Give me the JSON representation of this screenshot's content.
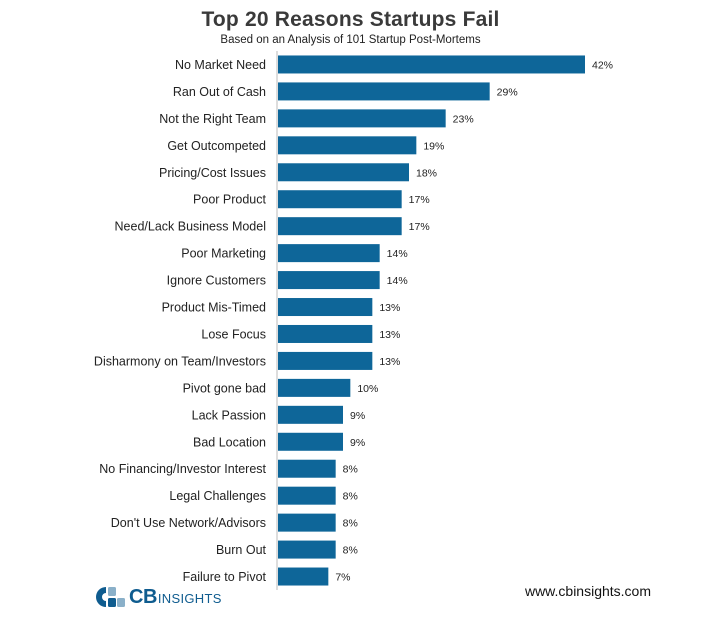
{
  "chart_data": {
    "type": "bar",
    "orientation": "horizontal",
    "title": "Top 20 Reasons Startups Fail",
    "subtitle": "Based on an Analysis of 101 Startup Post-Mortems",
    "categories": [
      "No Market Need",
      "Ran Out of Cash",
      "Not the Right Team",
      "Get Outcompeted",
      "Pricing/Cost Issues",
      "Poor Product",
      "Need/Lack Business Model",
      "Poor Marketing",
      "Ignore Customers",
      "Product Mis-Timed",
      "Lose Focus",
      "Disharmony on Team/Investors",
      "Pivot gone bad",
      "Lack Passion",
      "Bad Location",
      "No Financing/Investor Interest",
      "Legal Challenges",
      "Don't Use Network/Advisors",
      "Burn Out",
      "Failure to Pivot"
    ],
    "values": [
      42,
      29,
      23,
      19,
      18,
      17,
      17,
      14,
      14,
      13,
      13,
      13,
      10,
      9,
      9,
      8,
      8,
      8,
      8,
      7
    ],
    "value_labels": [
      "42%",
      "29%",
      "23%",
      "19%",
      "18%",
      "17%",
      "17%",
      "14%",
      "14%",
      "13%",
      "13%",
      "13%",
      "10%",
      "9%",
      "9%",
      "8%",
      "8%",
      "8%",
      "8%",
      "7%"
    ],
    "xlabel": "",
    "ylabel": "",
    "xlim": [
      0,
      42
    ],
    "grid": false,
    "legend": "none",
    "bar_color": "#0e6699"
  },
  "footer": {
    "logo_cb": "CB",
    "logo_insights": "INSIGHTS",
    "url": "www.cbinsights.com"
  },
  "colors": {
    "bar": "#0e6699",
    "logo_dark": "#0f5c8f",
    "logo_light": "#8ab0c9"
  }
}
